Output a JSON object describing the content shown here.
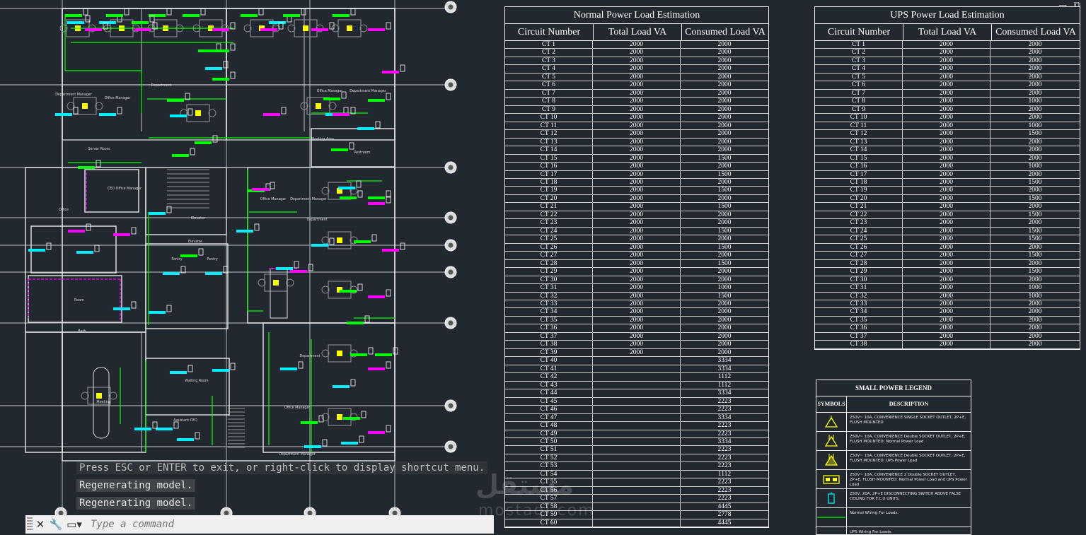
{
  "normal_table": {
    "title": "Normal Power Load Estimation",
    "headers": [
      "Circuit Number",
      "Total Load VA",
      "Consumed Load VA"
    ],
    "rows": [
      [
        "CT 1",
        "2000",
        "2000"
      ],
      [
        "CT 2",
        "2000",
        "2000"
      ],
      [
        "CT 3",
        "2000",
        "2000"
      ],
      [
        "CT 4",
        "2000",
        "2000"
      ],
      [
        "CT 5",
        "2000",
        "2000"
      ],
      [
        "CT 6",
        "2000",
        "2000"
      ],
      [
        "CT 7",
        "2000",
        "2000"
      ],
      [
        "CT 8",
        "2000",
        "2000"
      ],
      [
        "CT 9",
        "2000",
        "2000"
      ],
      [
        "CT 10",
        "2000",
        "2000"
      ],
      [
        "CT 11",
        "2000",
        "2000"
      ],
      [
        "CT 12",
        "2000",
        "2000"
      ],
      [
        "CT 13",
        "2000",
        "2000"
      ],
      [
        "CT 14",
        "2000",
        "2000"
      ],
      [
        "CT 15",
        "2000",
        "1500"
      ],
      [
        "CT 16",
        "2000",
        "2000"
      ],
      [
        "CT 17",
        "2000",
        "1500"
      ],
      [
        "CT 18",
        "2000",
        "2000"
      ],
      [
        "CT 19",
        "2000",
        "1500"
      ],
      [
        "CT 20",
        "2000",
        "2000"
      ],
      [
        "CT 21",
        "2000",
        "1500"
      ],
      [
        "CT 22",
        "2000",
        "2000"
      ],
      [
        "CT 23",
        "2000",
        "2000"
      ],
      [
        "CT 24",
        "2000",
        "1500"
      ],
      [
        "CT 25",
        "2000",
        "2000"
      ],
      [
        "CT 26",
        "2000",
        "1500"
      ],
      [
        "CT 27",
        "2000",
        "2000"
      ],
      [
        "CT 28",
        "2000",
        "1500"
      ],
      [
        "CT 29",
        "2000",
        "2000"
      ],
      [
        "CT 30",
        "2000",
        "2000"
      ],
      [
        "CT 31",
        "2000",
        "1000"
      ],
      [
        "CT 32",
        "2000",
        "1500"
      ],
      [
        "CT 33",
        "2000",
        "2000"
      ],
      [
        "CT 34",
        "2000",
        "2000"
      ],
      [
        "CT 35",
        "2000",
        "2000"
      ],
      [
        "CT 36",
        "2000",
        "2000"
      ],
      [
        "CT 37",
        "2000",
        "2000"
      ],
      [
        "CT 38",
        "2000",
        "2000"
      ],
      [
        "CT 39",
        "2000",
        "2000"
      ],
      [
        "CT 40",
        "",
        "3334"
      ],
      [
        "CT 41",
        "",
        "3334"
      ],
      [
        "CT 42",
        "",
        "1112"
      ],
      [
        "CT 43",
        "",
        "1112"
      ],
      [
        "CT 44",
        "",
        "3334"
      ],
      [
        "CT 45",
        "",
        "2223"
      ],
      [
        "CT 46",
        "",
        "2223"
      ],
      [
        "CT 47",
        "",
        "3334"
      ],
      [
        "CT 48",
        "",
        "2223"
      ],
      [
        "CT 49",
        "",
        "2223"
      ],
      [
        "CT 50",
        "",
        "3334"
      ],
      [
        "CT 51",
        "",
        "2223"
      ],
      [
        "CT 52",
        "",
        "2223"
      ],
      [
        "CT 53",
        "",
        "2223"
      ],
      [
        "CT 54",
        "",
        "1112"
      ],
      [
        "CT 55",
        "",
        "2223"
      ],
      [
        "CT 56",
        "",
        "2223"
      ],
      [
        "CT 57",
        "",
        "2223"
      ],
      [
        "CT 58",
        "",
        "4445"
      ],
      [
        "CT 59",
        "",
        "2778"
      ],
      [
        "CT 60",
        "",
        "4445"
      ]
    ]
  },
  "ups_table": {
    "title": "UPS Power Load Estimation",
    "headers": [
      "Circuit Number",
      "Total Load VA",
      "Consumed Load VA"
    ],
    "rows": [
      [
        "CT 1",
        "2000",
        "2000"
      ],
      [
        "CT 2",
        "2000",
        "2000"
      ],
      [
        "CT 3",
        "2000",
        "2000"
      ],
      [
        "CT 4",
        "2000",
        "2000"
      ],
      [
        "CT 5",
        "2000",
        "2000"
      ],
      [
        "CT 6",
        "2000",
        "2000"
      ],
      [
        "CT 7",
        "2000",
        "2000"
      ],
      [
        "CT 8",
        "2000",
        "1000"
      ],
      [
        "CT 9",
        "2000",
        "2000"
      ],
      [
        "CT 10",
        "2000",
        "2000"
      ],
      [
        "CT 11",
        "2000",
        "1000"
      ],
      [
        "CT 12",
        "2000",
        "1500"
      ],
      [
        "CT 13",
        "2000",
        "2000"
      ],
      [
        "CT 14",
        "2000",
        "2000"
      ],
      [
        "CT 15",
        "2000",
        "2000"
      ],
      [
        "CT 16",
        "2000",
        "1000"
      ],
      [
        "CT 17",
        "2000",
        "2000"
      ],
      [
        "CT 18",
        "2000",
        "1500"
      ],
      [
        "CT 19",
        "2000",
        "2000"
      ],
      [
        "CT 20",
        "2000",
        "1500"
      ],
      [
        "CT 21",
        "2000",
        "2000"
      ],
      [
        "CT 22",
        "2000",
        "1500"
      ],
      [
        "CT 23",
        "2000",
        "2000"
      ],
      [
        "CT 24",
        "2000",
        "1500"
      ],
      [
        "CT 25",
        "2000",
        "1500"
      ],
      [
        "CT 26",
        "2000",
        "2000"
      ],
      [
        "CT 27",
        "2000",
        "1500"
      ],
      [
        "CT 28",
        "2000",
        "2000"
      ],
      [
        "CT 29",
        "2000",
        "1500"
      ],
      [
        "CT 30",
        "2000",
        "2000"
      ],
      [
        "CT 31",
        "2000",
        "1000"
      ],
      [
        "CT 32",
        "2000",
        "1000"
      ],
      [
        "CT 33",
        "2000",
        "2000"
      ],
      [
        "CT 34",
        "2000",
        "2000"
      ],
      [
        "CT 35",
        "2000",
        "2000"
      ],
      [
        "CT 36",
        "2000",
        "2000"
      ],
      [
        "CT 37",
        "2000",
        "2000"
      ],
      [
        "CT 38",
        "2000",
        "2000"
      ]
    ]
  },
  "legend": {
    "title": "SMALL POWER LEGEND",
    "headers": [
      "SYMBOLS",
      "DESCRIPTION"
    ],
    "items": [
      {
        "icon": "single-socket-symbol",
        "desc": "250V~ 10A, CONVENIENCE SINGLE SOCKET OUTLET, 2P+E, FLUSH MOUNTED"
      },
      {
        "icon": "double-socket-symbol",
        "desc": "250V~ 10A, CONVENIENCE Double SOCKET OUTLET, 2P+E, FLUSH MOUNTED: Normal Power Load"
      },
      {
        "icon": "ups-double-socket-symbol",
        "desc": "250V~ 10A, CONVENIENCE Double SOCKET OUTLET, 2P+E, FLUSH MOUNTED: UPS Power Load"
      },
      {
        "icon": "two-double-socket-symbol",
        "desc": "250V~ 10A, CONVENIENCE 2 Double SOCKET OUTLET, 2P+E, FLUSH MOUNTED: Normal Power Load and UPS Power Load"
      },
      {
        "icon": "isolating-switch-symbol",
        "desc": "250V, 20A, 2P+E DISCONNECTING SWITCH ABOVE FALSE CEILING FOR F.C.U UNITS."
      },
      {
        "icon": "normal-wiring-symbol",
        "desc": "Normal Wiring For Loads."
      },
      {
        "icon": "ups-wiring-symbol",
        "desc": "UPS Wiring For Loads."
      }
    ]
  },
  "plan_labels": [
    "Department Manager",
    "Office Manager",
    "Department",
    "Office Manager",
    "Department Manager",
    "Server Room",
    "Meeting Area",
    "Restroom",
    "CEO Office Manager",
    "Office",
    "Department Manager",
    "Office Manager",
    "Department",
    "Elevator",
    "Elevator",
    "Pantry",
    "Pantry",
    "Room",
    "Bath",
    "Meeting",
    "Waiting Room",
    "Assistant CEO",
    "Department",
    "Office Manager",
    "Department Manager"
  ],
  "colors": {
    "background": "#212830",
    "normal_wiring": "#00ff00",
    "ups_wiring": "#ff00ff",
    "outlet": "#ffff00",
    "tag_cyan": "#00e5ff",
    "tag_green": "#00ff00",
    "tag_magenta": "#ff00ff"
  },
  "command": {
    "msg1": "Press ESC or ENTER to exit, or right-click to display shortcut menu.",
    "msg2": "Regenerating model.",
    "msg3": "Regenerating model.",
    "placeholder": "Type a command"
  },
  "watermark": {
    "line1": "مستقل",
    "line2": "mostaql.com"
  }
}
